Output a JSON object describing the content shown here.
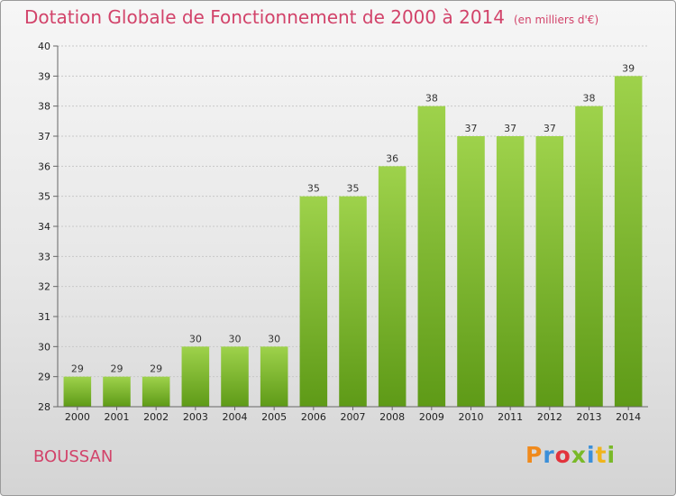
{
  "header": {
    "title": "Dotation Globale de Fonctionnement de 2000 à 2014",
    "unit": "(en milliers d'€)"
  },
  "footer": {
    "commune": "BOUSSAN",
    "logo_letters": [
      "P",
      "r",
      "o",
      "x",
      "i",
      "t",
      "i"
    ],
    "logo_colors": [
      "#f08a1c",
      "#3b8fd9",
      "#e2333c",
      "#79b928",
      "#3b8fd9",
      "#f0b41c",
      "#79b928"
    ]
  },
  "colors": {
    "bar_light": "#9ed24b",
    "bar_dark": "#5e9a17",
    "title": "#d2436a",
    "grid": "#c8c8c8"
  },
  "chart_data": {
    "type": "bar",
    "title": "Dotation Globale de Fonctionnement de 2000 à 2014",
    "subtitle": "(en milliers d'€)",
    "xlabel": "",
    "ylabel": "",
    "categories": [
      "2000",
      "2001",
      "2002",
      "2003",
      "2004",
      "2005",
      "2006",
      "2007",
      "2008",
      "2009",
      "2010",
      "2011",
      "2012",
      "2013",
      "2014"
    ],
    "values": [
      29,
      29,
      29,
      30,
      30,
      30,
      35,
      35,
      36,
      38,
      37,
      37,
      37,
      38,
      39
    ],
    "ylim": [
      28,
      40
    ],
    "yticks": [
      28,
      29,
      30,
      31,
      32,
      33,
      34,
      35,
      36,
      37,
      38,
      39,
      40
    ],
    "grid": true
  }
}
